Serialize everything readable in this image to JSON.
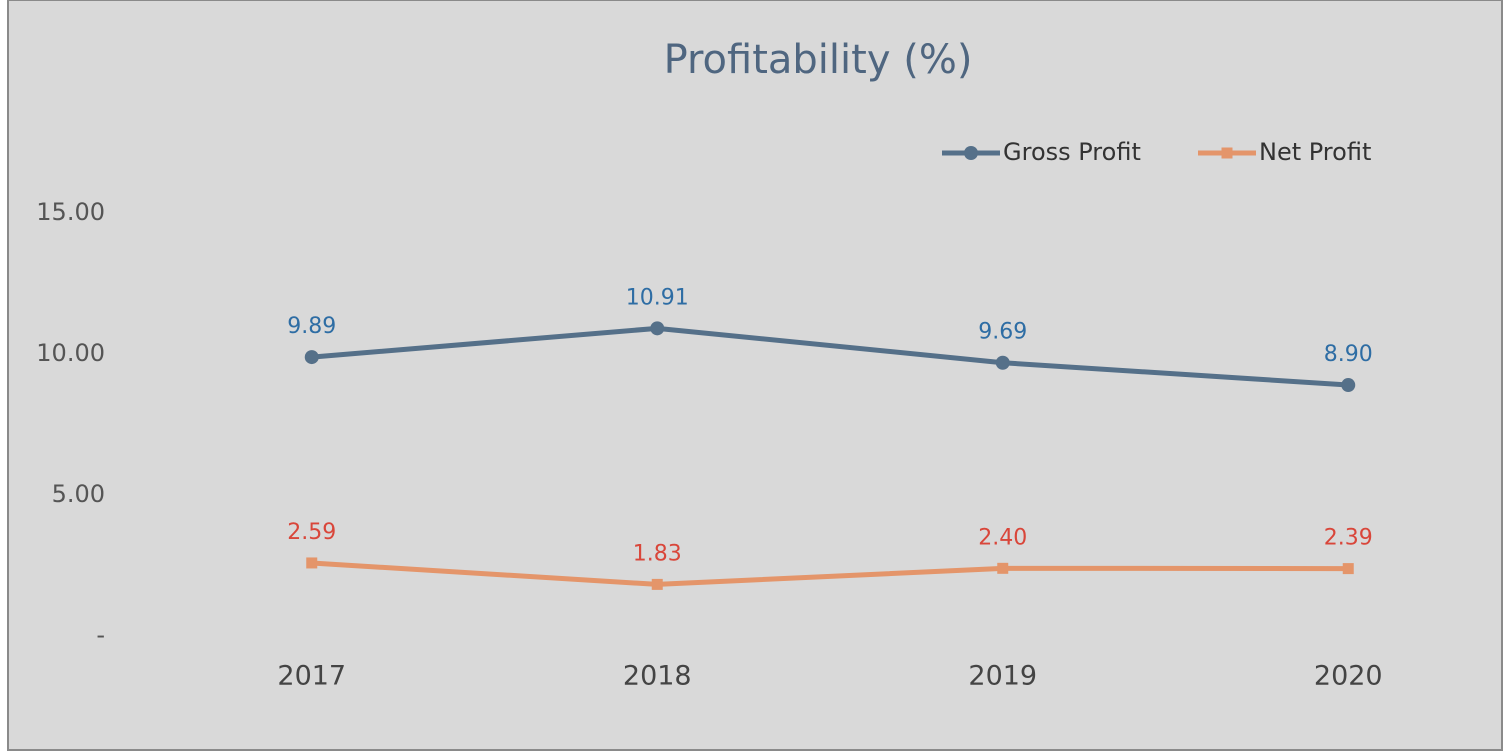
{
  "chart_data": {
    "type": "line",
    "title": "Profitability (%)",
    "categories": [
      "2017",
      "2018",
      "2019",
      "2020"
    ],
    "series": [
      {
        "name": "Gross Profit",
        "color": "#557089",
        "label_color": "#2e6da4",
        "marker": "circle",
        "values": [
          9.89,
          10.91,
          9.69,
          8.9
        ],
        "value_labels": [
          "9.89",
          "10.91",
          "9.69",
          "8.90"
        ]
      },
      {
        "name": "Net Profit",
        "color": "#e4956a",
        "label_color": "#d9463a",
        "marker": "square",
        "values": [
          2.59,
          1.83,
          2.4,
          2.39
        ],
        "value_labels": [
          "2.59",
          "1.83",
          "2.40",
          "2.39"
        ]
      }
    ],
    "ylim": [
      0,
      15
    ],
    "yticks": [
      {
        "value": 0,
        "label": "-"
      },
      {
        "value": 5,
        "label": "5.00"
      },
      {
        "value": 10,
        "label": "10.00"
      },
      {
        "value": 15,
        "label": "15.00"
      }
    ],
    "grid": false,
    "legend": "top-right"
  }
}
